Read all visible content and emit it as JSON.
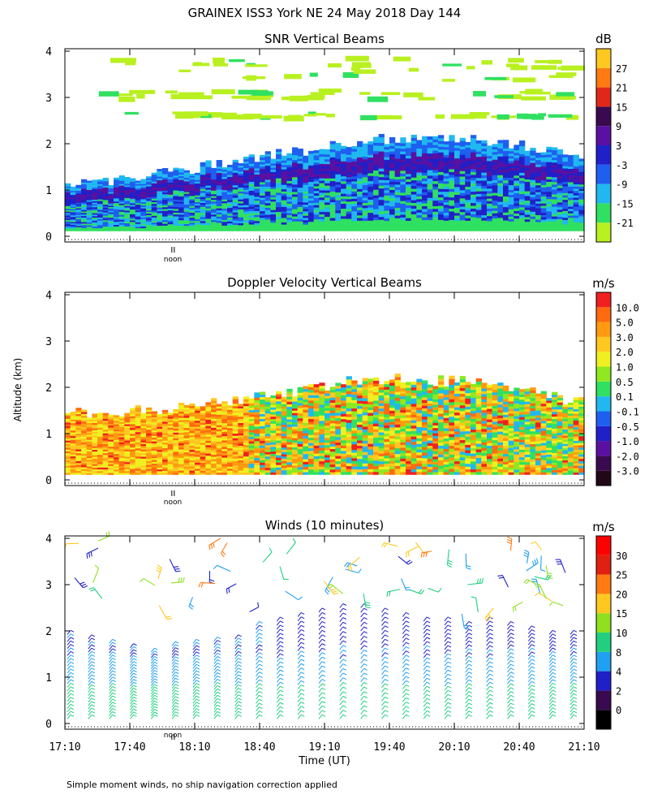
{
  "figure": {
    "title": "GRAINEX ISS3 York NE  24 May 2018 Day 144",
    "footnote": "Simple moment winds, no ship navigation correction applied",
    "y_axis_label": "Altitude (km)",
    "x_axis_label": "Time (UT)",
    "noon_marker": "noon"
  },
  "chart_data": [
    {
      "type": "heatmap",
      "id": "snr",
      "title": "SNR Vertical Beams",
      "units": "dB",
      "ylim": [
        0,
        4
      ],
      "yticks": [
        "0",
        "1",
        "2",
        "3",
        "4"
      ],
      "xlim_hours": [
        17.1667,
        21.1667
      ],
      "noon_hour": 18.0,
      "colorbar": {
        "labels": [
          "-21",
          "-15",
          "-9",
          "-3",
          "3",
          "9",
          "15",
          "21",
          "27"
        ],
        "colors": [
          "#b8f020",
          "#30e060",
          "#20b8f0",
          "#1e5ff0",
          "#2020c8",
          "#5a10a0",
          "#3a0a50",
          "#e0281a",
          "#ff7a10",
          "#ffc820"
        ]
      },
      "boundary_top_km": [
        [
          17.17,
          1.1
        ],
        [
          17.5,
          1.2
        ],
        [
          18.0,
          1.4
        ],
        [
          18.5,
          1.65
        ],
        [
          19.0,
          1.85
        ],
        [
          19.5,
          2.1
        ],
        [
          20.0,
          2.15
        ],
        [
          20.5,
          2.05
        ],
        [
          21.05,
          1.75
        ]
      ],
      "clear_air_layers_km": [
        [
          2.6,
          2.7
        ],
        [
          3.0,
          3.2
        ],
        [
          3.4,
          3.9
        ]
      ]
    },
    {
      "type": "heatmap",
      "id": "doppler",
      "title": "Doppler Velocity Vertical Beams",
      "units": "m/s",
      "ylim": [
        0,
        4
      ],
      "yticks": [
        "0",
        "1",
        "2",
        "3",
        "4"
      ],
      "xlim_hours": [
        17.1667,
        21.1667
      ],
      "noon_hour": 18.0,
      "colorbar": {
        "labels": [
          "10.0",
          "5.0",
          "3.0",
          "2.0",
          "1.0",
          "0.5",
          "0.1",
          "-0.1",
          "-0.5",
          "-1.0",
          "-2.0",
          "-3.0"
        ],
        "colors": [
          "#200818",
          "#3a0a50",
          "#5a10a0",
          "#2020c8",
          "#1e5ff0",
          "#20b8f0",
          "#30e060",
          "#90e820",
          "#f0f020",
          "#ffc820",
          "#ff9a10",
          "#ff6a10",
          "#f02020"
        ]
      },
      "boundary_top_km": [
        [
          17.17,
          1.45
        ],
        [
          17.5,
          1.45
        ],
        [
          18.0,
          1.55
        ],
        [
          18.5,
          1.7
        ],
        [
          19.0,
          1.95
        ],
        [
          19.5,
          2.2
        ],
        [
          20.0,
          2.15
        ],
        [
          20.5,
          2.1
        ],
        [
          21.05,
          1.7
        ]
      ]
    },
    {
      "type": "wind-barbs",
      "id": "winds",
      "title": "Winds (10 minutes)",
      "units": "m/s",
      "ylim": [
        0,
        4
      ],
      "yticks": [
        "0",
        "1",
        "2",
        "3",
        "4"
      ],
      "xlim_hours": [
        17.1667,
        21.1667
      ],
      "xticks": [
        "17:10",
        "17:40",
        "18:10",
        "18:40",
        "19:10",
        "19:40",
        "20:10",
        "20:40",
        "21:10"
      ],
      "noon_hour": 18.0,
      "colorbar": {
        "labels": [
          "0",
          "2",
          "4",
          "8",
          "10",
          "15",
          "20",
          "25",
          "30"
        ],
        "colors": [
          "#000000",
          "#3a0a50",
          "#2020c8",
          "#20a0f0",
          "#20d080",
          "#90e020",
          "#ffc820",
          "#ff7a10",
          "#e02010",
          "#ff0000"
        ]
      },
      "profiles_per_column": 25,
      "column_spacing_minutes": 10,
      "max_profile_height_km": [
        2.0,
        1.9,
        1.8,
        1.7,
        1.6,
        1.75,
        1.8,
        1.85,
        1.9,
        2.2,
        2.3,
        2.4,
        2.5,
        2.6,
        2.6,
        2.5,
        2.4,
        2.3,
        2.3,
        2.2,
        2.3,
        2.2,
        2.1,
        2.0,
        2.0
      ]
    }
  ]
}
